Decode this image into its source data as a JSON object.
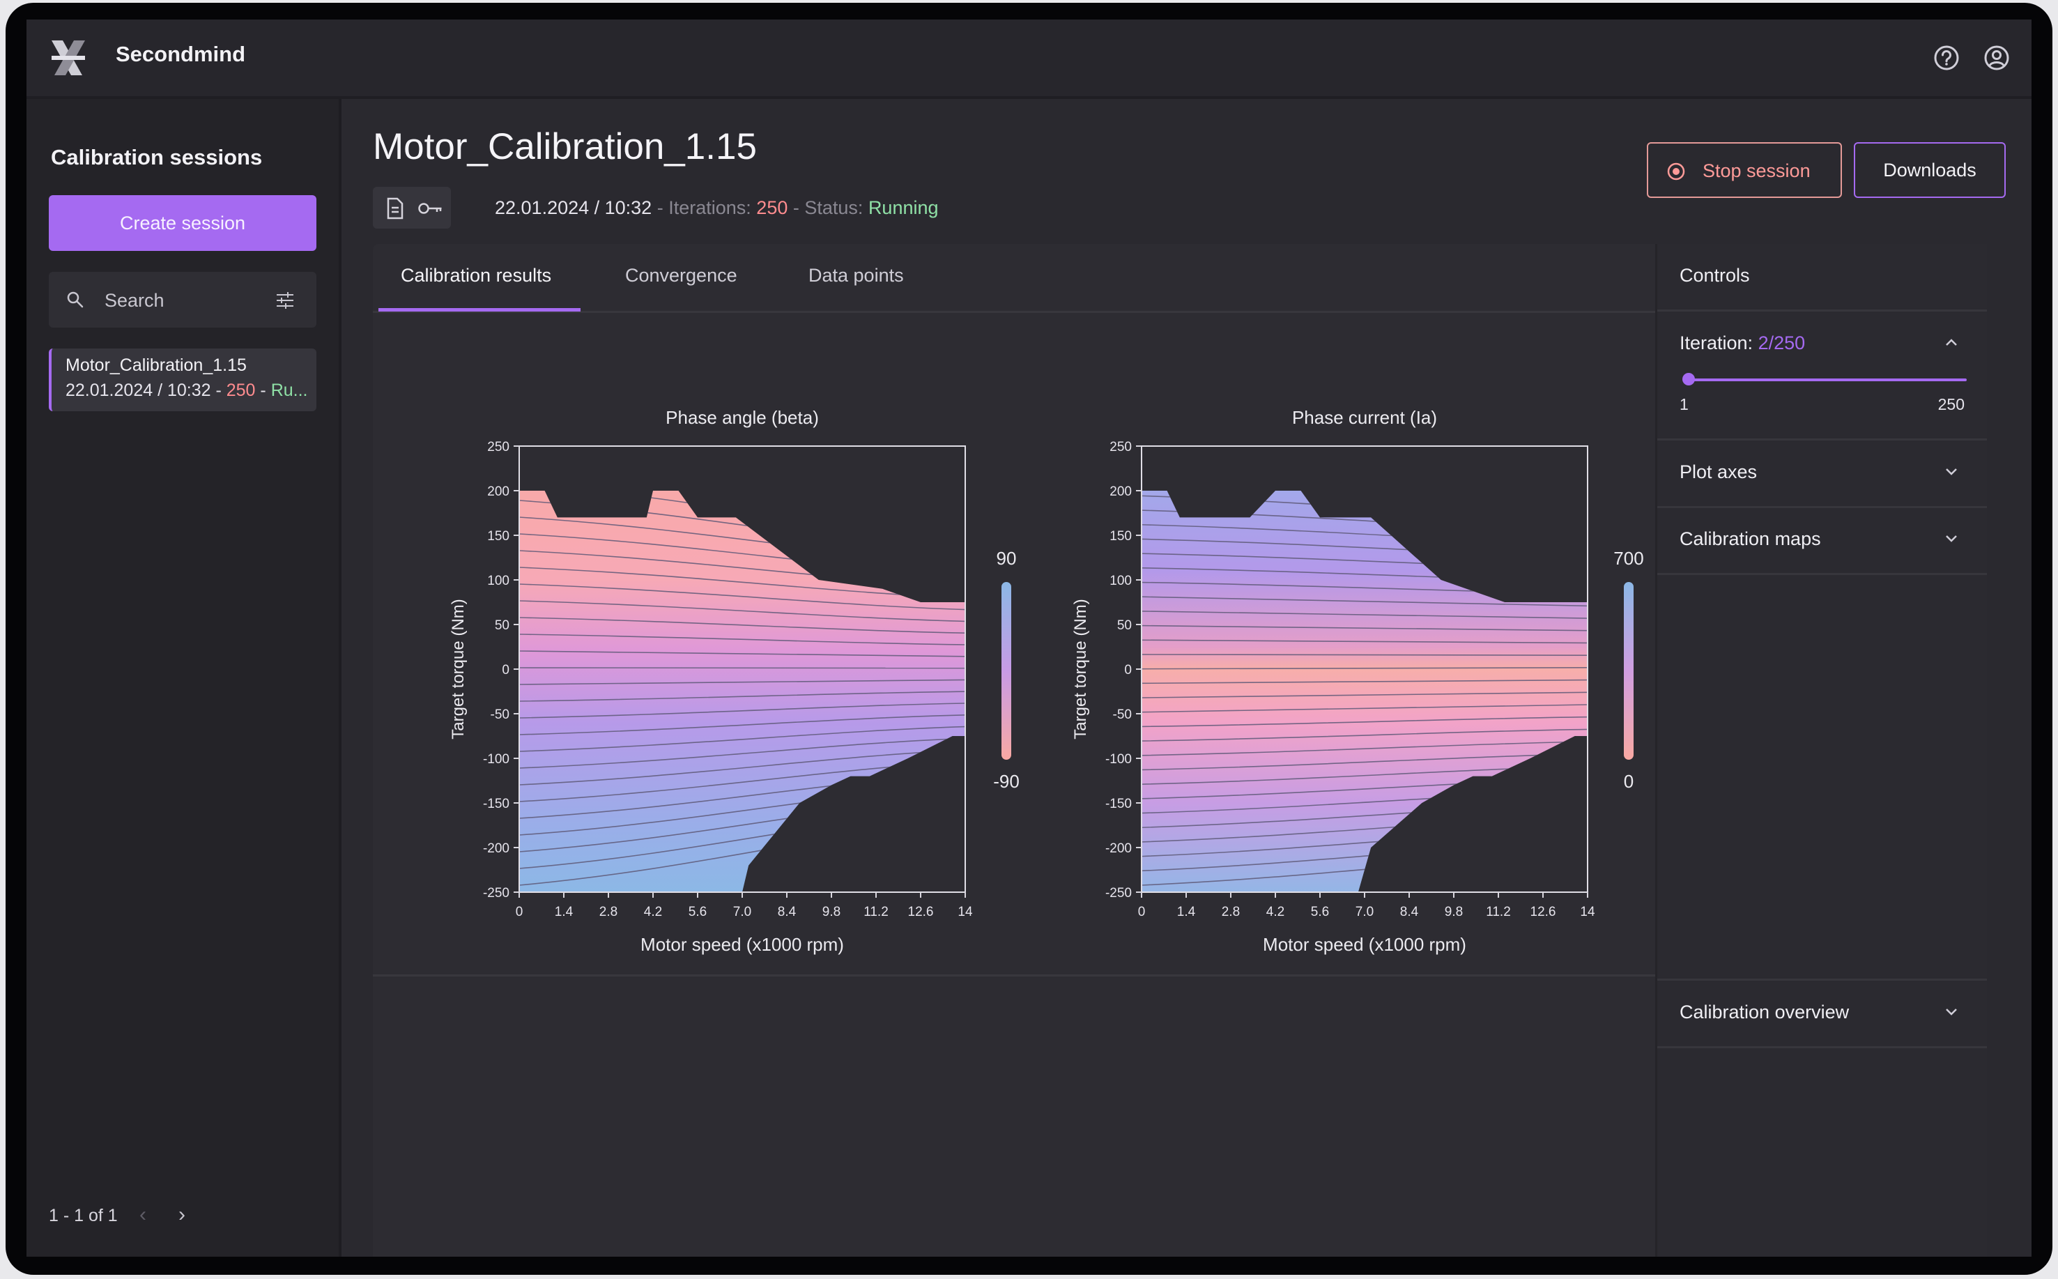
{
  "app": {
    "name": "Secondmind"
  },
  "sidebar": {
    "title": "Calibration sessions",
    "create_button": "Create session",
    "search_placeholder": "Search",
    "sessions": [
      {
        "name": "Motor_Calibration_1.15",
        "date": "22.01.2024 / 10:32",
        "iterations": "250",
        "status": "Ru..."
      }
    ],
    "pagination": "1 - 1 of 1"
  },
  "session": {
    "title": "Motor_Calibration_1.15",
    "datetime": "22.01.2024 / 10:32",
    "iterations_label": "Iterations:",
    "iterations": "250",
    "status_label": "Status:",
    "status": "Running",
    "stop_button": "Stop session",
    "downloads_button": "Downloads"
  },
  "tabs": [
    {
      "label": "Calibration results",
      "active": true
    },
    {
      "label": "Convergence",
      "active": false
    },
    {
      "label": "Data points",
      "active": false
    }
  ],
  "controls": {
    "title": "Controls",
    "iteration_label": "Iteration:",
    "iteration_value": "2/250",
    "slider_min": "1",
    "slider_max": "250",
    "slider_value": 2,
    "plot_axes": "Plot axes",
    "calibration_maps": "Calibration maps",
    "calibration_overview": "Calibration overview"
  },
  "colors": {
    "accent": "#a56af1",
    "stop": "#ff9b99",
    "running": "#8fe0a6",
    "iterations": "#ff8c8f"
  },
  "chart_data": [
    {
      "type": "heatmap",
      "title": "Phase angle (beta)",
      "xlabel": "Motor speed (x1000 rpm)",
      "ylabel": "Target torque (Nm)",
      "x_ticks": [
        "0",
        "1.4",
        "2.8",
        "4.2",
        "5.6",
        "7.0",
        "8.4",
        "9.8",
        "11.2",
        "12.6",
        "14"
      ],
      "y_ticks": [
        "250",
        "200",
        "150",
        "100",
        "50",
        "0",
        "-50",
        "-100",
        "-150",
        "-200",
        "-250"
      ],
      "xlim": [
        0,
        14
      ],
      "ylim": [
        -250,
        250
      ],
      "colorbar": {
        "max": "90",
        "min": "-90"
      },
      "region_upper": [
        [
          0,
          200
        ],
        [
          0.8,
          200
        ],
        [
          1.2,
          170
        ],
        [
          4.0,
          170
        ],
        [
          4.2,
          200
        ],
        [
          5.0,
          200
        ],
        [
          5.6,
          170
        ],
        [
          6.8,
          170
        ],
        [
          9.4,
          100
        ],
        [
          11.4,
          90
        ],
        [
          12.6,
          75
        ],
        [
          14,
          75
        ]
      ],
      "region_lower": [
        [
          0,
          -250
        ],
        [
          7.0,
          -250
        ],
        [
          7.2,
          -220
        ],
        [
          8.8,
          -150
        ],
        [
          9.8,
          -130
        ],
        [
          10.4,
          -120
        ],
        [
          11.0,
          -120
        ],
        [
          12.2,
          -100
        ],
        [
          13.6,
          -75
        ],
        [
          14,
          -75
        ]
      ]
    },
    {
      "type": "heatmap",
      "title": "Phase current (Ia)",
      "xlabel": "Motor speed (x1000 rpm)",
      "ylabel": "Target torque (Nm)",
      "x_ticks": [
        "0",
        "1.4",
        "2.8",
        "4.2",
        "5.6",
        "7.0",
        "8.4",
        "9.8",
        "11.2",
        "12.6",
        "14"
      ],
      "y_ticks": [
        "250",
        "200",
        "150",
        "100",
        "50",
        "0",
        "-50",
        "-100",
        "-150",
        "-200",
        "-250"
      ],
      "xlim": [
        0,
        14
      ],
      "ylim": [
        -250,
        250
      ],
      "colorbar": {
        "max": "700",
        "min": "0"
      },
      "region_upper": [
        [
          0,
          200
        ],
        [
          0.8,
          200
        ],
        [
          1.2,
          170
        ],
        [
          3.4,
          170
        ],
        [
          4.2,
          200
        ],
        [
          5.0,
          200
        ],
        [
          5.6,
          170
        ],
        [
          7.2,
          170
        ],
        [
          9.4,
          100
        ],
        [
          11.4,
          75
        ],
        [
          14,
          75
        ]
      ],
      "region_lower": [
        [
          0,
          -250
        ],
        [
          6.8,
          -250
        ],
        [
          7.2,
          -200
        ],
        [
          8.8,
          -150
        ],
        [
          9.8,
          -130
        ],
        [
          10.4,
          -120
        ],
        [
          11.0,
          -120
        ],
        [
          12.2,
          -100
        ],
        [
          13.6,
          -75
        ],
        [
          14,
          -75
        ]
      ]
    }
  ]
}
